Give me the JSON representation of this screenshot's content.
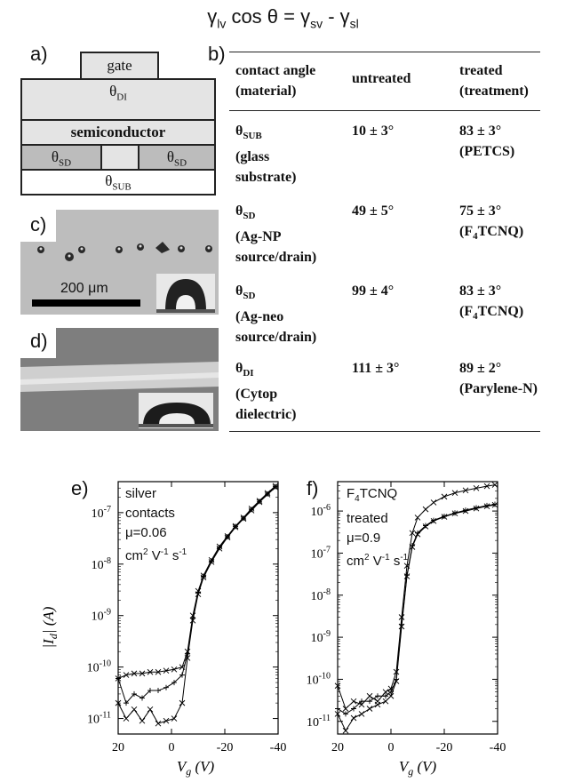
{
  "equation": {
    "gamma": "γ",
    "lv": "lv",
    "middle": " cos θ = ",
    "sv": "sv",
    "minus": " -  ",
    "sl": "sl"
  },
  "panel_labels": {
    "a": "a)",
    "b": "b)",
    "c": "c)",
    "d": "d)",
    "e": "e)",
    "f": "f)"
  },
  "device": {
    "gate": "gate",
    "theta": "θ",
    "di_sub": "DI",
    "semiconductor": "semiconductor",
    "sd_sub": "SD",
    "sub_sub": "SUB"
  },
  "table": {
    "header": {
      "col1": [
        "contact angle",
        "(material)"
      ],
      "col2": "untreated",
      "col3": [
        "treated",
        "(treatment)"
      ]
    },
    "rows": [
      {
        "symbol": "θ",
        "sub": "SUB",
        "lines": [
          "(glass",
          "substrate)"
        ],
        "untreated": "10 ± 3°",
        "treated": "83 ± 3°",
        "treatment": "(PETCS)",
        "treatment_sub": ""
      },
      {
        "symbol": "θ",
        "sub": "SD",
        "lines": [
          "(Ag-NP",
          "source/drain)"
        ],
        "untreated": "49 ± 5°",
        "treated": "75 ± 3°",
        "treatment": "(F",
        "treatment_sub": "4",
        "treatment_rest": "TCNQ)"
      },
      {
        "symbol": "θ",
        "sub": "SD",
        "lines": [
          "(Ag-neo",
          "source/drain)"
        ],
        "untreated": "99 ± 4°",
        "treated": "83 ± 3°",
        "treatment": "(F",
        "treatment_sub": "4",
        "treatment_rest": "TCNQ)"
      },
      {
        "symbol": "θ",
        "sub": "DI",
        "lines": [
          "(Cytop",
          "dielectric)"
        ],
        "untreated": "111 ± 3°",
        "treated": "89 ± 2°",
        "treatment": "(Parylene-N)",
        "treatment_sub": ""
      }
    ]
  },
  "micrograph": {
    "scalebar": "200 μm"
  },
  "plot_e_text": {
    "l1": "silver",
    "l2": "contacts",
    "l3": "μ=0.06",
    "l4a": "cm",
    "l4b": "2",
    "l4c": " V",
    "l4d": "-1",
    "l4e": " s",
    "l4f": "-1"
  },
  "plot_f_text": {
    "l1a": "F",
    "l1b": "4",
    "l1c": "TCNQ",
    "l2": "treated",
    "l3": "μ=0.9",
    "l4a": "cm",
    "l4b": "2",
    "l4c": " V",
    "l4d": "-1",
    "l4e": " s",
    "l4f": "-1"
  },
  "axes": {
    "ylabel": "|I_d| (A)",
    "xlabel": "V_g (V)",
    "x_ticks": [
      "20",
      "0",
      "-20",
      "-40"
    ]
  },
  "chart_data": [
    {
      "type": "line",
      "panel": "e",
      "xlabel": "Vg (V)",
      "ylabel": "|Id| (A)",
      "yscale": "log",
      "xlim": [
        20,
        -40
      ],
      "ylim": [
        5e-12,
        4e-07
      ],
      "y_tick_labels": [
        "10-11",
        "10-10",
        "10-9",
        "10-8",
        "10-7"
      ],
      "y_ticks": [
        1e-11,
        1e-10,
        1e-09,
        1e-08,
        1e-07
      ],
      "series": [
        {
          "marker": "x",
          "x": [
            20,
            17,
            14,
            11,
            8,
            5,
            2,
            -1,
            -4,
            -6,
            -8,
            -10,
            -12,
            -15,
            -18,
            -21,
            -24,
            -27,
            -30,
            -33,
            -36,
            -39
          ],
          "y": [
            6e-11,
            7e-11,
            7.5e-11,
            7.5e-11,
            8e-11,
            8e-11,
            8.5e-11,
            9e-11,
            1e-10,
            2e-10,
            1e-09,
            3e-09,
            6e-09,
            1.2e-08,
            2.2e-08,
            3.5e-08,
            5.5e-08,
            8e-08,
            1.2e-07,
            1.7e-07,
            2.4e-07,
            3.3e-07
          ]
        },
        {
          "marker": "+",
          "x": [
            20,
            17,
            14,
            11,
            8,
            5,
            2,
            -1,
            -4,
            -6,
            -8,
            -10,
            -12,
            -15,
            -18,
            -21,
            -24,
            -27,
            -30,
            -33,
            -36,
            -39
          ],
          "y": [
            6e-11,
            2e-11,
            3e-11,
            2.5e-11,
            3.5e-11,
            3.5e-11,
            4e-11,
            5e-11,
            7e-11,
            1.8e-10,
            9e-10,
            2.8e-09,
            5.8e-09,
            1.15e-08,
            2.1e-08,
            3.4e-08,
            5.4e-08,
            7.8e-08,
            1.15e-07,
            1.65e-07,
            2.3e-07,
            3.2e-07
          ]
        },
        {
          "marker": "x",
          "x": [
            20,
            17,
            14,
            11,
            8,
            5,
            2,
            -1,
            -4,
            -6,
            -8,
            -10,
            -12,
            -15,
            -18,
            -21,
            -24,
            -27,
            -30,
            -33,
            -36,
            -39
          ],
          "y": [
            2e-11,
            1e-11,
            1.5e-11,
            9e-12,
            1.5e-11,
            8e-12,
            9e-12,
            1e-11,
            2e-11,
            1.5e-10,
            8e-10,
            2.6e-09,
            5.5e-09,
            1.1e-08,
            2e-08,
            3.3e-08,
            5.2e-08,
            7.6e-08,
            1.1e-07,
            1.6e-07,
            2.25e-07,
            3.1e-07
          ]
        }
      ]
    },
    {
      "type": "line",
      "panel": "f",
      "xlabel": "Vg (V)",
      "ylabel": "|Id| (A)",
      "yscale": "log",
      "xlim": [
        20,
        -40
      ],
      "ylim": [
        5e-12,
        5e-06
      ],
      "y_tick_labels": [
        "10-11",
        "10-10",
        "10-9",
        "10-8",
        "10-7",
        "10-6"
      ],
      "y_ticks": [
        1e-11,
        1e-10,
        1e-09,
        1e-08,
        1e-07,
        1e-06
      ],
      "series": [
        {
          "marker": "x",
          "x": [
            20,
            17,
            14,
            11,
            8,
            5,
            2,
            0,
            -2,
            -4,
            -6,
            -8,
            -10,
            -13,
            -16,
            -20,
            -24,
            -28,
            -32,
            -36,
            -39
          ],
          "y": [
            7e-11,
            2e-11,
            3e-11,
            2.5e-11,
            4e-11,
            3e-11,
            5e-11,
            6e-11,
            1.5e-10,
            3e-09,
            5e-08,
            3e-07,
            7e-07,
            1.1e-06,
            1.6e-06,
            2.2e-06,
            2.7e-06,
            3.1e-06,
            3.5e-06,
            3.9e-06,
            4.2e-06
          ]
        },
        {
          "marker": "+",
          "x": [
            20,
            17,
            14,
            11,
            8,
            5,
            2,
            0,
            -2,
            -4,
            -6,
            -8,
            -10,
            -13,
            -16,
            -20,
            -24,
            -28,
            -32,
            -36,
            -39
          ],
          "y": [
            2e-11,
            1.5e-11,
            2e-11,
            3e-11,
            3e-11,
            4e-11,
            4e-11,
            5e-11,
            1e-10,
            2e-09,
            3e-08,
            1.5e-07,
            3e-07,
            4.5e-07,
            6e-07,
            7.5e-07,
            9e-07,
            1.05e-06,
            1.2e-06,
            1.35e-06,
            1.45e-06
          ]
        },
        {
          "marker": "x",
          "x": [
            20,
            17,
            14,
            11,
            8,
            5,
            2,
            0,
            -2,
            -4,
            -6,
            -8,
            -10,
            -13,
            -16,
            -20,
            -24,
            -28,
            -32,
            -36,
            -39
          ],
          "y": [
            1.5e-11,
            6e-12,
            1.2e-11,
            1.5e-11,
            2e-11,
            2.5e-11,
            3e-11,
            4e-11,
            9e-11,
            1.8e-09,
            2.8e-08,
            1.4e-07,
            2.8e-07,
            4.3e-07,
            5.8e-07,
            7.3e-07,
            8.8e-07,
            1e-06,
            1.15e-06,
            1.3e-06,
            1.4e-06
          ]
        }
      ]
    }
  ]
}
